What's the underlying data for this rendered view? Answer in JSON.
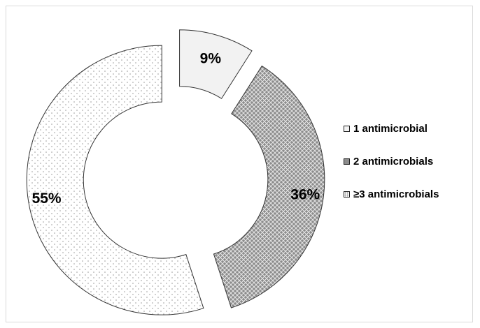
{
  "chart_data": {
    "type": "pie",
    "variant": "exploded-donut",
    "title": "",
    "categories": [
      "1 antimicrobial",
      "2 antimicrobials",
      "≥3 antimicrobials"
    ],
    "values": [
      9,
      36,
      55
    ],
    "labels": [
      "9%",
      "36%",
      "55%"
    ],
    "legend_position": "right",
    "patterns": [
      "light-fill",
      "dark-crosshatch",
      "dotted"
    ]
  },
  "legend": {
    "items": [
      "1 antimicrobial",
      "2 antimicrobials",
      "≥3 antimicrobials"
    ]
  }
}
